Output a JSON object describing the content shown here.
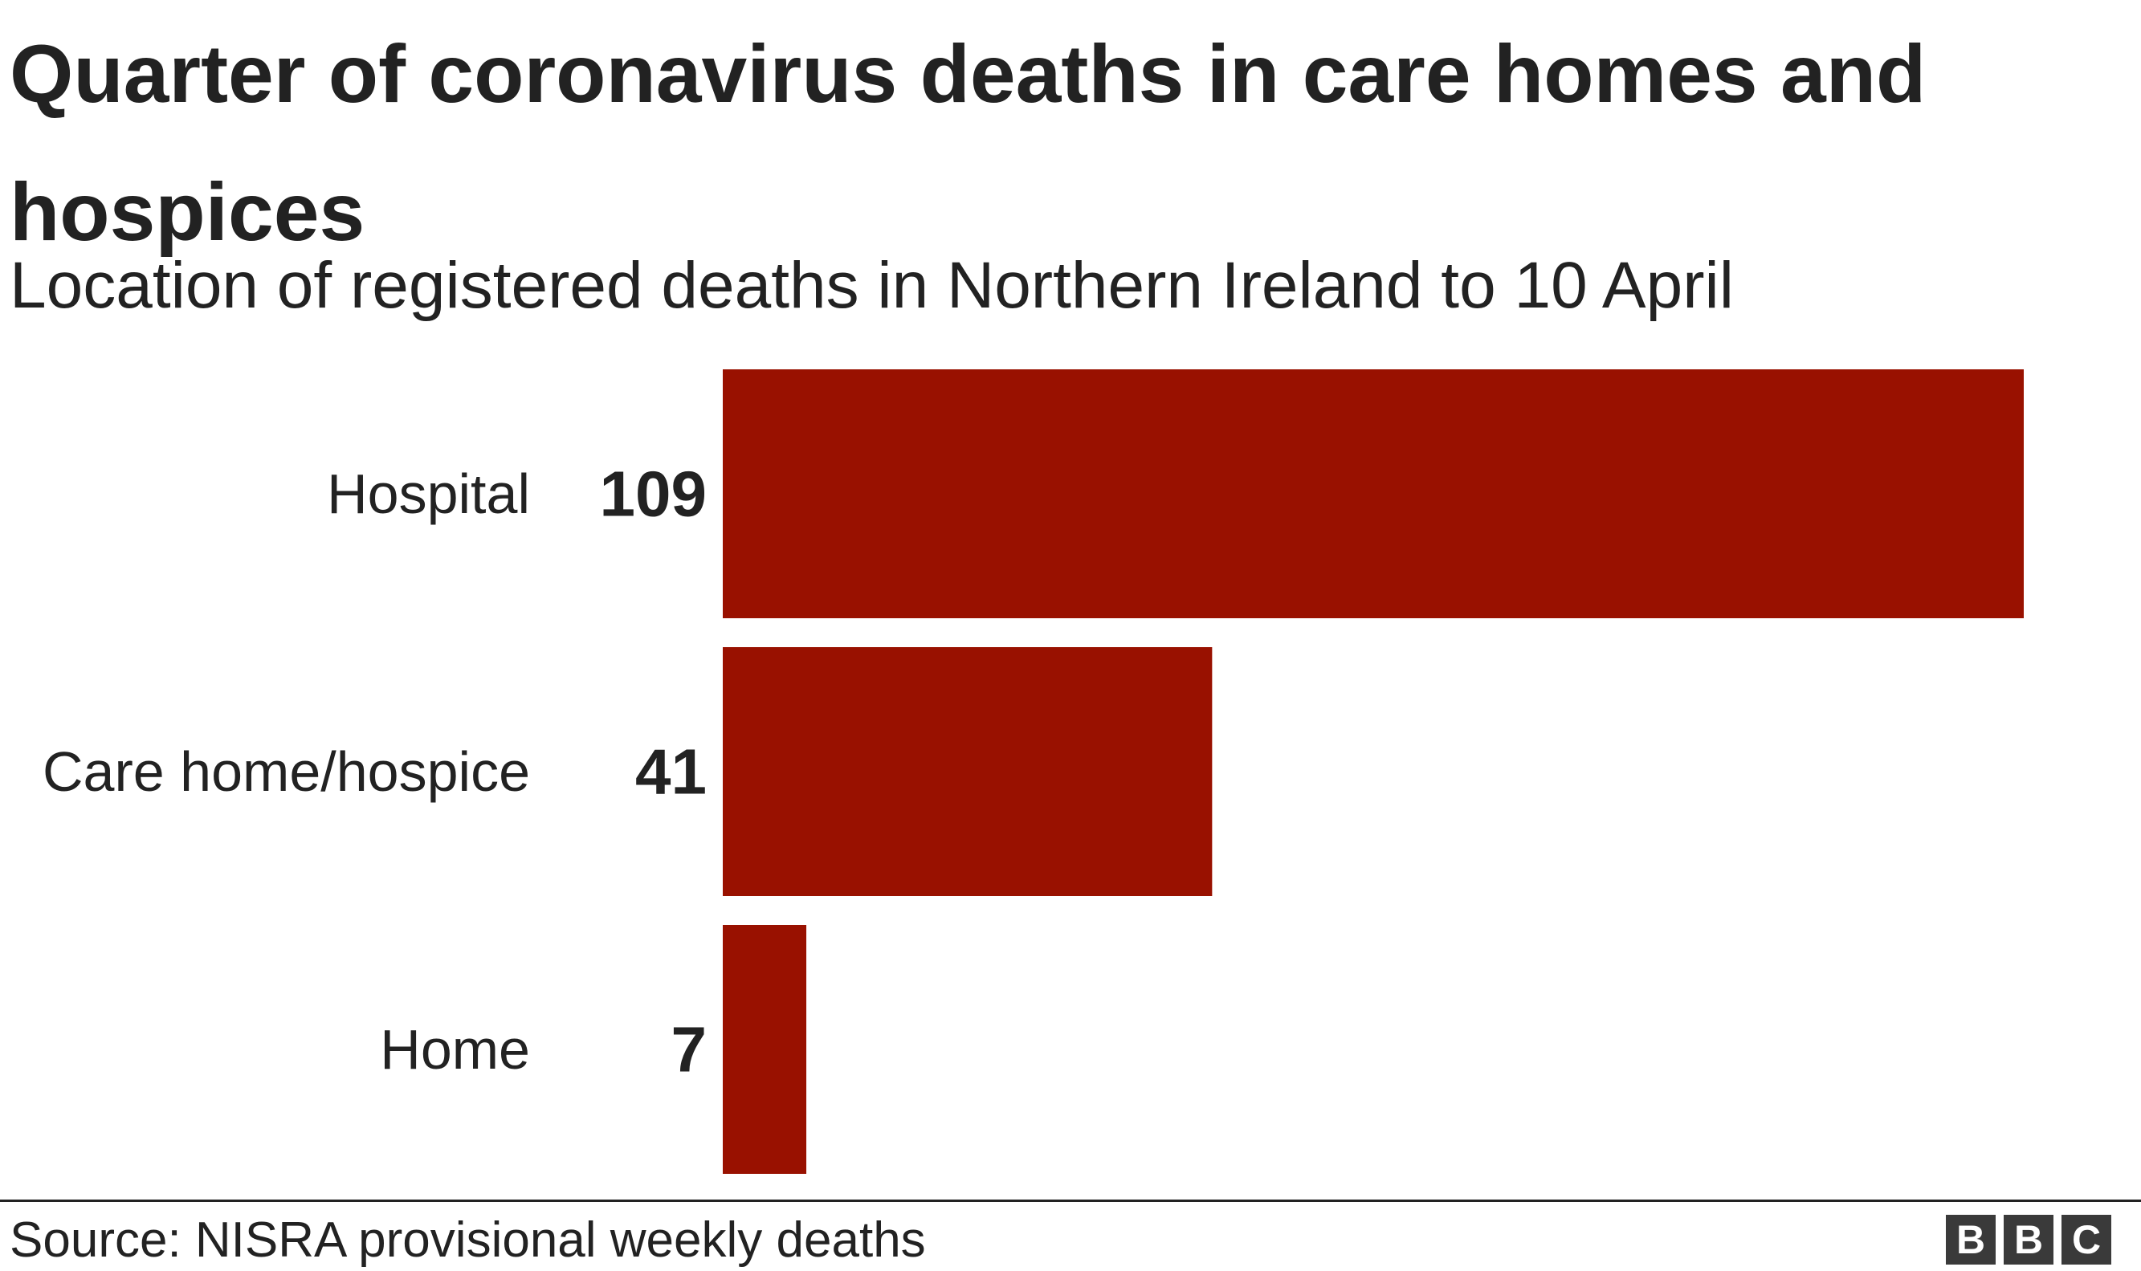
{
  "header": {
    "title": "Quarter of coronavirus deaths in care homes and hospices",
    "subtitle": "Location of registered deaths in Northern Ireland to 10 April"
  },
  "footer": {
    "source": "Source: NISRA provisional weekly deaths",
    "logo_letters": [
      "B",
      "B",
      "C"
    ]
  },
  "colors": {
    "bar": "#991100",
    "text": "#222222",
    "logo": "#3a3a3a"
  },
  "chart_data": {
    "type": "bar",
    "orientation": "horizontal",
    "title": "Quarter of coronavirus deaths in care homes and hospices",
    "subtitle": "Location of registered deaths in Northern Ireland to 10 April",
    "categories": [
      "Hospital",
      "Care home/hospice",
      "Home"
    ],
    "values": [
      109,
      41,
      7
    ],
    "data_labels": [
      "109",
      "41",
      "7"
    ],
    "xlim": [
      0,
      109
    ],
    "grid": false,
    "legend": "none"
  }
}
